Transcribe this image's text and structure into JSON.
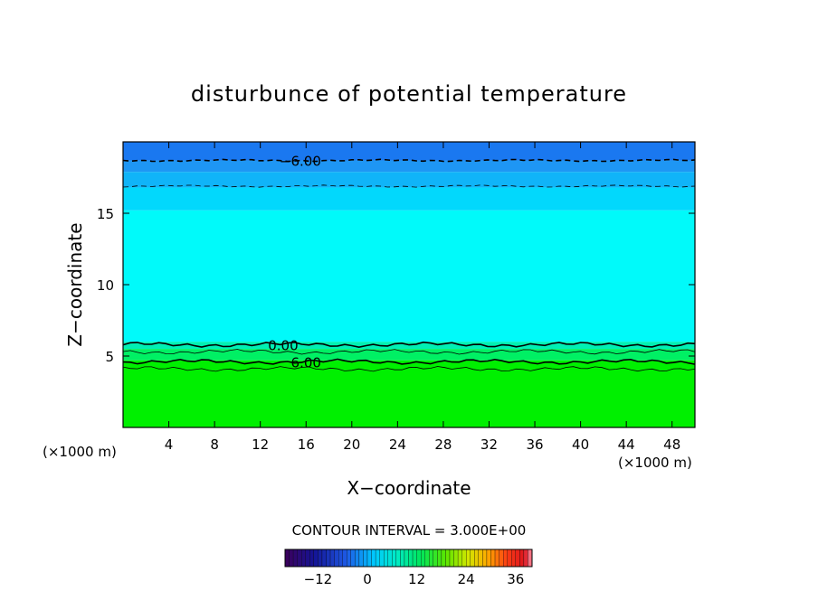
{
  "chart_data": {
    "type": "heatmap",
    "title": "disturbunce of potential temperature",
    "xlabel": "X−coordinate",
    "ylabel": "Z−coordinate",
    "x_unit_left": "(×1000 m)",
    "x_unit_right": "(×1000 m)",
    "xlim": [
      0,
      50
    ],
    "ylim": [
      0,
      20
    ],
    "x_ticks": [
      4,
      8,
      12,
      16,
      20,
      24,
      28,
      32,
      36,
      40,
      44,
      48
    ],
    "y_ticks": [
      5,
      10,
      15
    ],
    "bands": [
      {
        "z_from": 18.7,
        "z_to": 20.0,
        "color": "#1a78f0"
      },
      {
        "z_from": 17.9,
        "z_to": 18.7,
        "color": "#1e96f4"
      },
      {
        "z_from": 16.8,
        "z_to": 17.9,
        "color": "#10b4f8"
      },
      {
        "z_from": 15.2,
        "z_to": 16.8,
        "color": "#02d8fc"
      },
      {
        "z_from": 6.0,
        "z_to": 15.2,
        "color": "#00fafa"
      },
      {
        "z_from": 5.5,
        "z_to": 6.0,
        "color": "#00f0b4"
      },
      {
        "z_from": 4.7,
        "z_to": 5.5,
        "color": "#00f064"
      },
      {
        "z_from": 0.0,
        "z_to": 4.7,
        "color": "#00f000"
      }
    ],
    "contours": [
      {
        "label": "−6.00",
        "z": 18.7,
        "style": "dashed",
        "label_x": 15.5
      },
      {
        "label": "",
        "z": 16.9,
        "style": "dashed"
      },
      {
        "label": "0.00",
        "z": 5.8,
        "style": "solid",
        "label_x": 14.0
      },
      {
        "label": "",
        "z": 5.3,
        "style": "solid"
      },
      {
        "label": "6.00",
        "z": 4.6,
        "style": "solid",
        "label_x": 16.0
      },
      {
        "label": "",
        "z": 4.1,
        "style": "solid"
      }
    ],
    "contour_interval_text": "CONTOUR INTERVAL = 3.000E+00",
    "colorbar": {
      "range": [
        -20,
        40
      ],
      "ticks": [
        -12,
        0,
        12,
        24,
        36
      ],
      "tick_labels": [
        "−12",
        "0",
        "12",
        "24",
        "36"
      ]
    }
  }
}
